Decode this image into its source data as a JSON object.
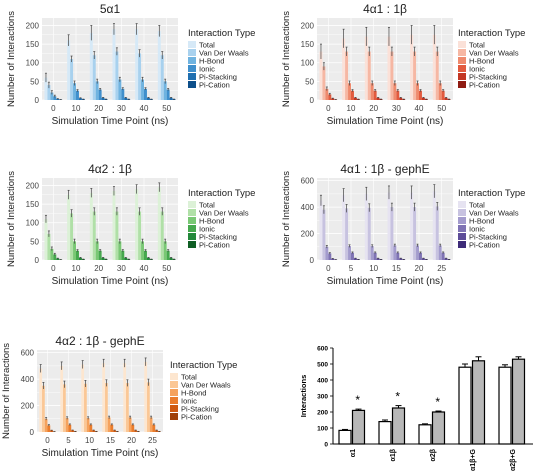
{
  "colors": {
    "panel_bg": "#ececec",
    "grid": "#ffffff",
    "errorbar": "#444444",
    "blue": [
      "#d6e9f7",
      "#a8d1ee",
      "#6fb3e0",
      "#3f8fcc",
      "#1f6fb0",
      "#0d4f8a"
    ],
    "red": [
      "#fbe1d8",
      "#f6b7a3",
      "#ef8a6d",
      "#e25a3e",
      "#c33623",
      "#8f1b12"
    ],
    "green": [
      "#dcf1d7",
      "#b0e0a7",
      "#79c874",
      "#45a84d",
      "#23883a",
      "#0f5e24"
    ],
    "purple": [
      "#e6e3f1",
      "#c7c2e0",
      "#a39bcd",
      "#7f73b4",
      "#5d4c98",
      "#3d2b78"
    ],
    "orange": [
      "#fde6cf",
      "#fbc795",
      "#f5a25d",
      "#ea7c2c",
      "#cf5a12",
      "#a04009"
    ],
    "summary_fill_a": "#ffffff",
    "summary_fill_b": "#b8b8b8"
  },
  "chart_data": [
    {
      "type": "bar",
      "title": "5α1",
      "xlabel": "Simulation Time Point (ns)",
      "ylabel": "Number of Interactions",
      "categories": [
        "0",
        "10",
        "20",
        "30",
        "40",
        "50"
      ],
      "ylim": [
        0,
        220
      ],
      "yticks": [
        "0",
        "50",
        "100",
        "150",
        "200"
      ],
      "ytick_values": [
        0,
        50,
        100,
        150,
        200
      ],
      "grid": true,
      "palette": "blue",
      "legend": {
        "title": "Interaction Type",
        "position": "right"
      },
      "series": [
        {
          "name": "Total",
          "values": [
            60,
            160,
            180,
            190,
            190,
            185
          ],
          "err": [
            12,
            15,
            20,
            15,
            15,
            15
          ]
        },
        {
          "name": "Van Der Waals",
          "values": [
            40,
            110,
            120,
            130,
            125,
            120
          ],
          "err": [
            8,
            8,
            10,
            10,
            10,
            10
          ]
        },
        {
          "name": "H-Bond",
          "values": [
            20,
            45,
            50,
            55,
            55,
            50
          ],
          "err": [
            5,
            6,
            6,
            6,
            6,
            6
          ]
        },
        {
          "name": "Ionic",
          "values": [
            10,
            25,
            28,
            30,
            30,
            28
          ],
          "err": [
            3,
            3,
            3,
            3,
            3,
            3
          ]
        },
        {
          "name": "Pi-Stacking",
          "values": [
            3,
            5,
            6,
            6,
            6,
            6
          ],
          "err": [
            1,
            1,
            1,
            1,
            1,
            1
          ]
        },
        {
          "name": "Pi-Cation",
          "values": [
            1,
            2,
            2,
            2,
            2,
            2
          ],
          "err": [
            0.5,
            0.5,
            0.5,
            0.5,
            0.5,
            0.5
          ]
        }
      ]
    },
    {
      "type": "bar",
      "title": "4α1 : 1β",
      "xlabel": "Simulation Time Point (ns)",
      "ylabel": "Number of Interactions",
      "categories": [
        "0",
        "10",
        "20",
        "30",
        "40",
        "50"
      ],
      "ylim": [
        0,
        220
      ],
      "yticks": [
        "0",
        "50",
        "100",
        "150",
        "200"
      ],
      "ytick_values": [
        0,
        50,
        100,
        150,
        200
      ],
      "grid": true,
      "palette": "red",
      "legend": {
        "title": "Interaction Type",
        "position": "right"
      },
      "series": [
        {
          "name": "Total",
          "values": [
            130,
            165,
            170,
            170,
            175,
            175
          ],
          "err": [
            20,
            25,
            25,
            25,
            25,
            25
          ]
        },
        {
          "name": "Van Der Waals",
          "values": [
            90,
            130,
            130,
            130,
            130,
            130
          ],
          "err": [
            10,
            12,
            12,
            12,
            12,
            12
          ]
        },
        {
          "name": "H-Bond",
          "values": [
            30,
            45,
            45,
            45,
            45,
            45
          ],
          "err": [
            5,
            6,
            6,
            6,
            6,
            6
          ]
        },
        {
          "name": "Ionic",
          "values": [
            15,
            25,
            25,
            25,
            25,
            25
          ],
          "err": [
            3,
            3,
            3,
            3,
            3,
            3
          ]
        },
        {
          "name": "Pi-Stacking",
          "values": [
            4,
            6,
            6,
            6,
            6,
            6
          ],
          "err": [
            1,
            1,
            1,
            1,
            1,
            1
          ]
        },
        {
          "name": "Pi-Cation",
          "values": [
            1,
            2,
            2,
            2,
            2,
            2
          ],
          "err": [
            0.5,
            0.5,
            0.5,
            0.5,
            0.5,
            0.5
          ]
        }
      ]
    },
    {
      "type": "bar",
      "title": "4α2 : 1β",
      "xlabel": "Simulation Time Point (ns)",
      "ylabel": "Number of Interactions",
      "categories": [
        "0",
        "10",
        "20",
        "30",
        "40",
        "50"
      ],
      "ylim": [
        0,
        220
      ],
      "yticks": [
        "0",
        "50",
        "100",
        "150",
        "200"
      ],
      "ytick_values": [
        0,
        50,
        100,
        150,
        200
      ],
      "grid": true,
      "palette": "green",
      "legend": {
        "title": "Interaction Type",
        "position": "right"
      },
      "series": [
        {
          "name": "Total",
          "values": [
            110,
            175,
            180,
            185,
            190,
            195
          ],
          "err": [
            10,
            12,
            12,
            12,
            12,
            12
          ]
        },
        {
          "name": "Van Der Waals",
          "values": [
            70,
            125,
            130,
            130,
            130,
            130
          ],
          "err": [
            8,
            10,
            10,
            10,
            10,
            10
          ]
        },
        {
          "name": "H-Bond",
          "values": [
            30,
            50,
            50,
            50,
            50,
            50
          ],
          "err": [
            5,
            6,
            6,
            6,
            6,
            6
          ]
        },
        {
          "name": "Ionic",
          "values": [
            15,
            25,
            25,
            25,
            25,
            25
          ],
          "err": [
            3,
            3,
            3,
            3,
            3,
            3
          ]
        },
        {
          "name": "Pi-Stacking",
          "values": [
            4,
            6,
            6,
            6,
            6,
            6
          ],
          "err": [
            1,
            1,
            1,
            1,
            1,
            1
          ]
        },
        {
          "name": "Pi-Cation",
          "values": [
            1,
            2,
            2,
            2,
            2,
            2
          ],
          "err": [
            0.5,
            0.5,
            0.5,
            0.5,
            0.5,
            0.5
          ]
        }
      ]
    },
    {
      "type": "bar",
      "title": "4α1 : 1β - gephE",
      "xlabel": "Simulation Time Point (ns)",
      "ylabel": "Number of Interactions",
      "categories": [
        "0",
        "5",
        "10",
        "15",
        "20",
        "25"
      ],
      "ylim": [
        0,
        620
      ],
      "yticks": [
        "0",
        "200",
        "400",
        "600"
      ],
      "ytick_values": [
        0,
        200,
        400,
        600
      ],
      "grid": true,
      "palette": "purple",
      "legend": {
        "title": "Interaction Type",
        "position": "right"
      },
      "series": [
        {
          "name": "Total",
          "values": [
            450,
            490,
            500,
            510,
            510,
            520
          ],
          "err": [
            40,
            50,
            50,
            50,
            50,
            50
          ]
        },
        {
          "name": "Van Der Waals",
          "values": [
            380,
            390,
            395,
            400,
            400,
            405
          ],
          "err": [
            30,
            30,
            30,
            30,
            30,
            30
          ]
        },
        {
          "name": "H-Bond",
          "values": [
            100,
            105,
            105,
            110,
            110,
            110
          ],
          "err": [
            10,
            10,
            10,
            10,
            10,
            10
          ]
        },
        {
          "name": "Ionic",
          "values": [
            50,
            55,
            55,
            55,
            55,
            55
          ],
          "err": [
            6,
            6,
            6,
            6,
            6,
            6
          ]
        },
        {
          "name": "Pi-Stacking",
          "values": [
            10,
            12,
            12,
            12,
            12,
            12
          ],
          "err": [
            2,
            2,
            2,
            2,
            2,
            2
          ]
        },
        {
          "name": "Pi-Cation",
          "values": [
            3,
            4,
            4,
            4,
            4,
            4
          ],
          "err": [
            1,
            1,
            1,
            1,
            1,
            1
          ]
        }
      ]
    },
    {
      "type": "bar",
      "title": "4α2 : 1β - gephE",
      "xlabel": "Simulation Time Point (ns)",
      "ylabel": "Number of Interactions",
      "categories": [
        "0",
        "5",
        "10",
        "15",
        "20",
        "25"
      ],
      "ylim": [
        0,
        620
      ],
      "yticks": [
        "0",
        "200",
        "400",
        "600"
      ],
      "ytick_values": [
        0,
        200,
        400,
        600
      ],
      "grid": true,
      "palette": "orange",
      "legend": {
        "title": "Interaction Type",
        "position": "right"
      },
      "series": [
        {
          "name": "Total",
          "values": [
            480,
            500,
            510,
            520,
            520,
            530
          ],
          "err": [
            30,
            30,
            30,
            30,
            30,
            30
          ]
        },
        {
          "name": "Van Der Waals",
          "values": [
            350,
            360,
            365,
            370,
            370,
            375
          ],
          "err": [
            25,
            25,
            25,
            25,
            25,
            25
          ]
        },
        {
          "name": "H-Bond",
          "values": [
            100,
            105,
            105,
            110,
            110,
            110
          ],
          "err": [
            10,
            10,
            10,
            10,
            10,
            10
          ]
        },
        {
          "name": "Ionic",
          "values": [
            50,
            55,
            55,
            55,
            55,
            55
          ],
          "err": [
            6,
            6,
            6,
            6,
            6,
            6
          ]
        },
        {
          "name": "Pi-Stacking",
          "values": [
            12,
            13,
            13,
            13,
            13,
            13
          ],
          "err": [
            2,
            2,
            2,
            2,
            2,
            2
          ]
        },
        {
          "name": "Pi-Cation",
          "values": [
            3,
            4,
            4,
            4,
            4,
            4
          ],
          "err": [
            1,
            1,
            1,
            1,
            1,
            1
          ]
        }
      ]
    },
    {
      "type": "bar",
      "title": "",
      "xlabel": "",
      "ylabel": "Interactions",
      "categories": [
        "α1",
        "α1β",
        "α2β",
        "α1β+G",
        "α2β+G"
      ],
      "ylim": [
        0,
        600
      ],
      "yticks": [
        "0",
        "100",
        "200",
        "300",
        "400",
        "500",
        "600"
      ],
      "ytick_values": [
        0,
        100,
        200,
        300,
        400,
        500,
        600
      ],
      "grid": false,
      "series": [
        {
          "values": [
            85,
            140,
            120,
            480,
            480
          ],
          "err": [
            6,
            10,
            6,
            20,
            15
          ]
        },
        {
          "values": [
            210,
            225,
            200,
            520,
            530
          ],
          "err": [
            8,
            15,
            6,
            25,
            15
          ]
        }
      ],
      "significance": [
        "*",
        "*",
        "*",
        "",
        ""
      ]
    }
  ]
}
